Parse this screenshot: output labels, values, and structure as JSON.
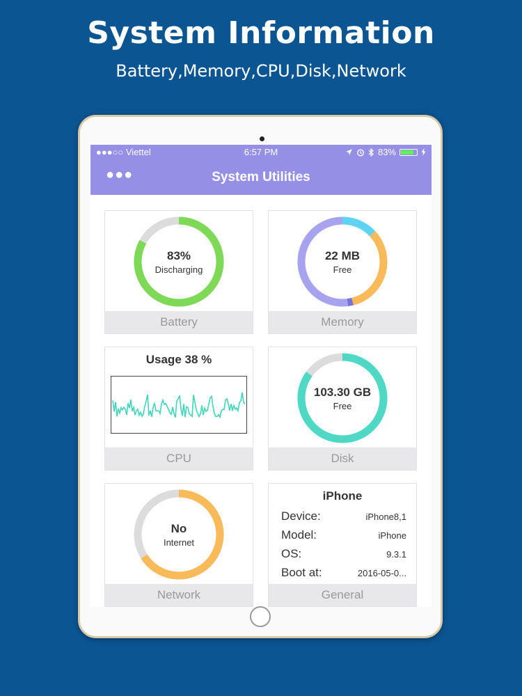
{
  "promo": {
    "title": "System Information",
    "subtitle": "Battery,Memory,CPU,Disk,Network"
  },
  "status_bar": {
    "carrier": "●●●○○ Viettel",
    "time": "6:57 PM",
    "battery_percent": "83%",
    "battery_level": 0.83
  },
  "nav": {
    "title": "System Utilities",
    "menu_icon": "more-dots-icon"
  },
  "tiles": {
    "battery": {
      "caption": "Battery",
      "value": "83%",
      "sub": "Discharging",
      "level": 0.83,
      "color": "#7ed957",
      "track": "#dcdcdc"
    },
    "memory": {
      "caption": "Memory",
      "value": "22 MB",
      "sub": "Free",
      "segments": [
        {
          "color": "#5ed3f3",
          "fraction": 0.13
        },
        {
          "color": "#f9bb5a",
          "fraction": 0.33
        },
        {
          "color": "#7a74d8",
          "fraction": 0.02
        },
        {
          "color": "#a7a3ee",
          "fraction": 0.52
        }
      ]
    },
    "cpu": {
      "caption": "CPU",
      "title": "Usage 38 %",
      "line_color": "#40d6b8",
      "usage": 0.38
    },
    "disk": {
      "caption": "Disk",
      "value": "103.30 GB",
      "sub": "Free",
      "level": 0.85,
      "color": "#4fd9c4",
      "track": "#dcdcdc"
    },
    "network": {
      "caption": "Network",
      "value": "No",
      "sub": "Internet",
      "level": 0.66,
      "color": "#f9bb5a",
      "track": "#dcdcdc"
    },
    "general": {
      "caption": "General",
      "title": "iPhone",
      "rows": [
        {
          "label": "Device:",
          "value": "iPhone8,1"
        },
        {
          "label": "Model:",
          "value": "iPhone"
        },
        {
          "label": "OS:",
          "value": "9.3.1"
        },
        {
          "label": "Boot at:",
          "value": "2016-05-0..."
        }
      ]
    }
  }
}
